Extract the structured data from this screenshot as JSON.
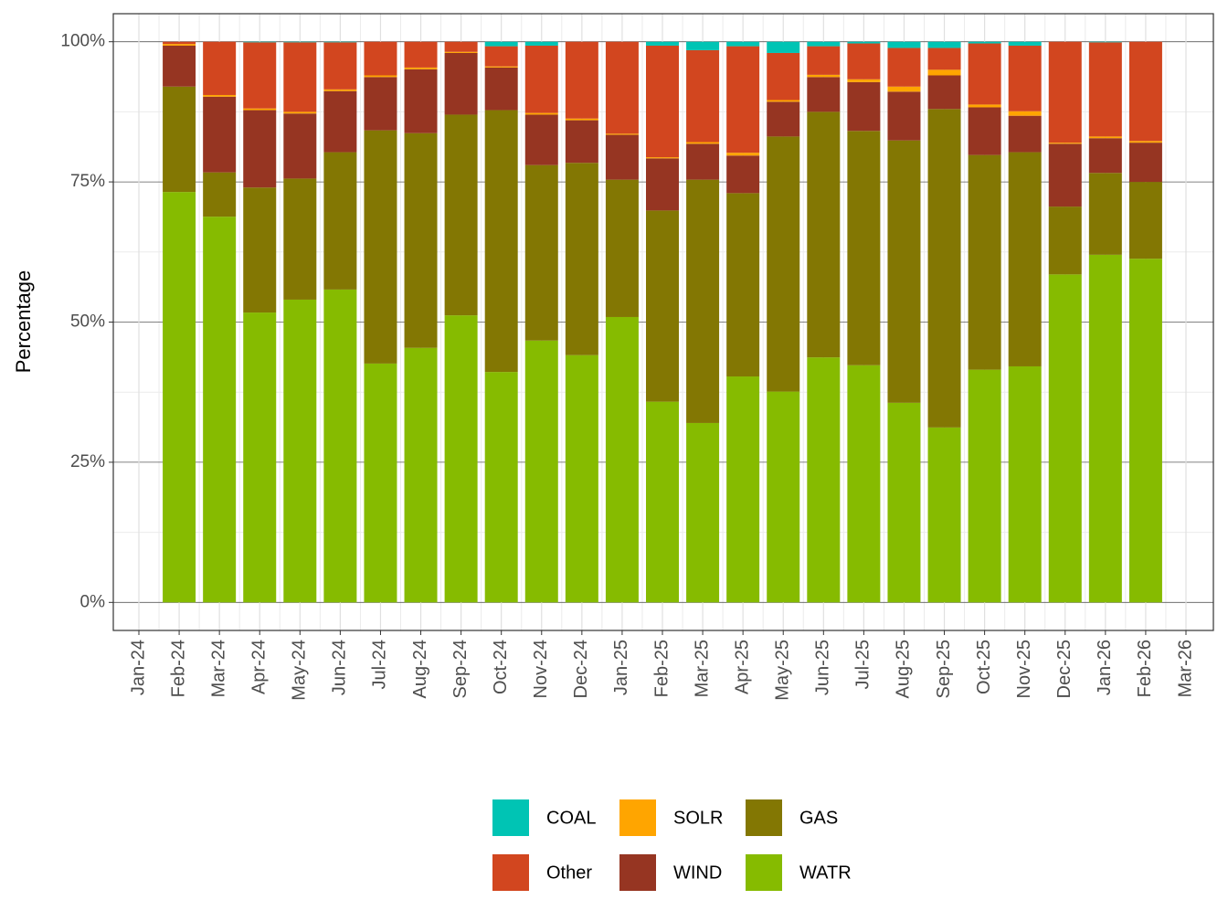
{
  "chart_data": {
    "type": "bar",
    "stacked": true,
    "y_label": "Percentage",
    "categories": [
      "Jan-24",
      "Feb-24",
      "Mar-24",
      "Apr-24",
      "May-24",
      "Jun-24",
      "Jul-24",
      "Aug-24",
      "Sep-24",
      "Oct-24",
      "Nov-24",
      "Dec-24",
      "Jan-25",
      "Feb-25",
      "Mar-25",
      "Apr-25",
      "May-25",
      "Jun-25",
      "Jul-25",
      "Aug-25",
      "Sep-25",
      "Oct-25",
      "Nov-25",
      "Dec-25",
      "Jan-26",
      "Feb-26",
      "Mar-26"
    ],
    "series": [
      {
        "name": "COAL",
        "color": "#00c4b4",
        "values": [
          null,
          0,
          0,
          0.1,
          0.1,
          0.1,
          0,
          0,
          0,
          0.8,
          0.7,
          0,
          0,
          0.7,
          1.5,
          0.8,
          2.0,
          0.8,
          0.3,
          1.1,
          1.1,
          0.3,
          0.7,
          0,
          0.1,
          0,
          null
        ]
      },
      {
        "name": "Other",
        "color": "#d2461f",
        "values": [
          null,
          0.4,
          9.5,
          11.8,
          12.4,
          8.4,
          6.0,
          4.6,
          1.8,
          3.6,
          12.0,
          13.7,
          16.4,
          19.9,
          16.4,
          19.0,
          8.4,
          5.1,
          6.4,
          6.9,
          3.9,
          10.9,
          11.7,
          18.0,
          16.8,
          17.7,
          null
        ]
      },
      {
        "name": "SOLR",
        "color": "#ffa500",
        "values": [
          null,
          0.3,
          0.3,
          0.3,
          0.3,
          0.3,
          0.3,
          0.3,
          0.2,
          0.2,
          0.3,
          0.3,
          0.2,
          0.2,
          0.3,
          0.5,
          0.3,
          0.4,
          0.5,
          0.9,
          1.0,
          0.5,
          0.8,
          0.2,
          0.3,
          0.3,
          null
        ]
      },
      {
        "name": "WIND",
        "color": "#963522",
        "values": [
          null,
          7.3,
          13.5,
          13.8,
          11.6,
          10.9,
          9.5,
          11.4,
          11.0,
          7.6,
          9.0,
          7.6,
          8.0,
          9.3,
          6.4,
          6.7,
          6.2,
          6.2,
          8.7,
          8.7,
          6.0,
          8.5,
          6.5,
          11.2,
          6.2,
          7.0,
          null
        ]
      },
      {
        "name": "GAS",
        "color": "#837703",
        "values": [
          null,
          18.8,
          7.9,
          22.3,
          21.6,
          24.5,
          41.6,
          38.3,
          35.8,
          46.7,
          31.3,
          34.3,
          24.5,
          34.1,
          43.4,
          32.7,
          45.5,
          43.8,
          41.8,
          46.8,
          56.8,
          38.3,
          38.2,
          12.1,
          14.6,
          13.7,
          null
        ]
      },
      {
        "name": "WATR",
        "color": "#86bb00",
        "values": [
          null,
          73.2,
          68.8,
          51.7,
          54.0,
          55.8,
          42.6,
          45.4,
          51.2,
          41.1,
          46.7,
          44.1,
          50.9,
          35.8,
          32.0,
          40.3,
          37.6,
          43.7,
          42.3,
          35.6,
          31.2,
          41.5,
          42.1,
          58.5,
          62.0,
          61.3,
          null
        ]
      }
    ],
    "ylim": [
      -5,
      105
    ],
    "yticks": [
      {
        "value": 0,
        "label": "0%"
      },
      {
        "value": 25,
        "label": "25%"
      },
      {
        "value": 50,
        "label": "50%"
      },
      {
        "value": 75,
        "label": "75%"
      },
      {
        "value": 100,
        "label": "100%"
      }
    ],
    "grid": true,
    "legend": "bottom"
  }
}
